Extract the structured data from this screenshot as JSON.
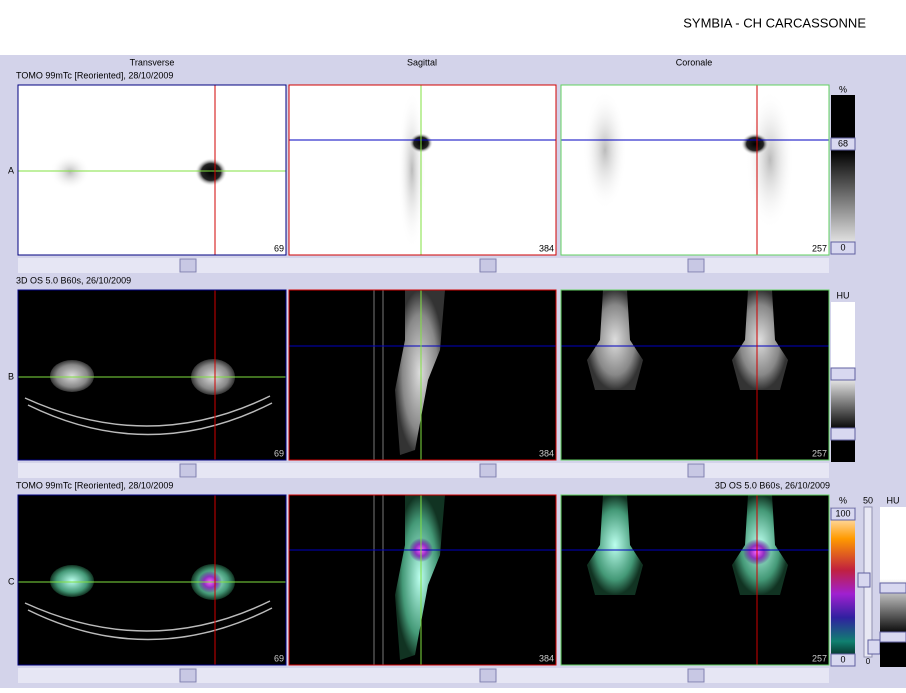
{
  "header": {
    "title": "SYMBIA - CH CARCASSONNE"
  },
  "columns": [
    "Transverse",
    "Sagittal",
    "Coronale"
  ],
  "rows": [
    {
      "label": "A",
      "series": "TOMO 99mTc [Reoriented], 28/10/2009",
      "slices": [
        "69",
        "384",
        "257"
      ],
      "scale": {
        "unit": "%",
        "marker": "68",
        "min": "0"
      }
    },
    {
      "label": "B",
      "series": "3D  OS  5.0  B60s, 26/10/2009",
      "slices": [
        "69",
        "384",
        "257"
      ],
      "scale": {
        "unit": "HU"
      }
    },
    {
      "label": "C",
      "series": "TOMO 99mTc [Reoriented], 28/10/2009",
      "series_right": "3D  OS  5.0  B60s, 26/10/2009",
      "slices": [
        "69",
        "384",
        "257"
      ],
      "scale": {
        "unit": "%",
        "max": "100",
        "min": "0",
        "window": "50",
        "unit2": "HU",
        "min2": "0"
      }
    }
  ]
}
